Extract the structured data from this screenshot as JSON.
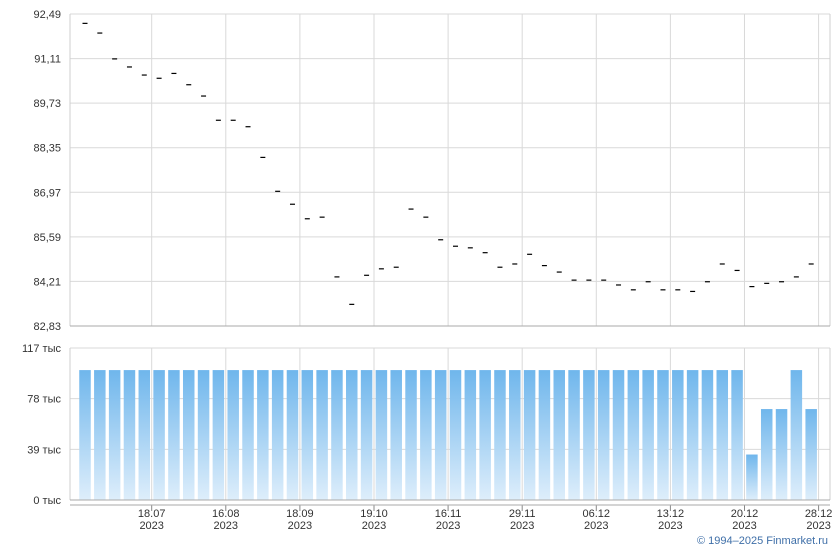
{
  "credit": "© 1994–2025 Finmarket.ru",
  "colors": {
    "grid": "#d9d9d9",
    "frame": "#cfcfcf",
    "axis_text": "#333333",
    "price_mark": "#000000",
    "volume_top": "#6fb6ec",
    "volume_bottom": "#deeefb",
    "credit": "#3f6fa8"
  },
  "chart_data": [
    {
      "type": "scatter",
      "marker": "dash",
      "ylim": [
        82.83,
        92.49
      ],
      "y_ticks": [
        "92,49",
        "91,11",
        "89,73",
        "88,35",
        "86,97",
        "85,59",
        "84,21",
        "82,83"
      ],
      "y_tick_values": [
        92.49,
        91.11,
        89.73,
        88.35,
        86.97,
        85.59,
        84.21,
        82.83
      ],
      "grid": true,
      "values": [
        92.2,
        91.9,
        91.1,
        90.85,
        90.6,
        90.5,
        90.65,
        90.3,
        89.95,
        89.2,
        89.2,
        89.0,
        88.05,
        87.0,
        86.6,
        86.15,
        86.2,
        84.35,
        83.5,
        84.4,
        84.6,
        84.65,
        86.45,
        86.2,
        85.5,
        85.3,
        85.25,
        85.1,
        84.65,
        84.75,
        85.05,
        84.7,
        84.5,
        84.25,
        84.25,
        84.25,
        84.1,
        83.95,
        84.2,
        83.95,
        83.95,
        83.9,
        84.2,
        84.75,
        84.55,
        84.05,
        84.15,
        84.2,
        84.35,
        84.75
      ]
    },
    {
      "type": "bar",
      "ylim": [
        0,
        117
      ],
      "y_ticks": [
        "117 тыс",
        "78 тыс",
        "39 тыс",
        "0 тыс"
      ],
      "y_tick_values": [
        117,
        78,
        39,
        0
      ],
      "grid": true,
      "values": [
        100,
        100,
        100,
        100,
        100,
        100,
        100,
        100,
        100,
        100,
        100,
        100,
        100,
        100,
        100,
        100,
        100,
        100,
        100,
        100,
        100,
        100,
        100,
        100,
        100,
        100,
        100,
        100,
        100,
        100,
        100,
        100,
        100,
        100,
        100,
        100,
        100,
        100,
        100,
        100,
        100,
        100,
        100,
        100,
        100,
        35,
        70,
        70,
        100,
        70
      ],
      "x_ticks": [
        {
          "date": "18.07",
          "year": "2023",
          "index": 4.5
        },
        {
          "date": "16.08",
          "year": "2023",
          "index": 9.5
        },
        {
          "date": "18.09",
          "year": "2023",
          "index": 14.5
        },
        {
          "date": "19.10",
          "year": "2023",
          "index": 19.5
        },
        {
          "date": "16.11",
          "year": "2023",
          "index": 24.5
        },
        {
          "date": "29.11",
          "year": "2023",
          "index": 29.5
        },
        {
          "date": "06.12",
          "year": "2023",
          "index": 34.5
        },
        {
          "date": "13.12",
          "year": "2023",
          "index": 39.5
        },
        {
          "date": "20.12",
          "year": "2023",
          "index": 44.5
        },
        {
          "date": "28.12",
          "year": "2023",
          "index": 49.5
        }
      ]
    }
  ]
}
